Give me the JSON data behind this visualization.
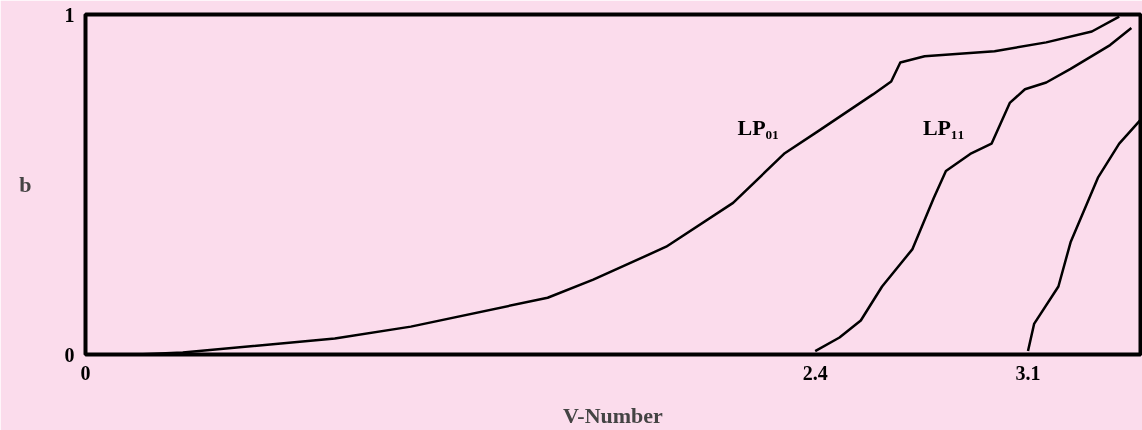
{
  "chart_data": {
    "type": "line",
    "xlabel": "V-Number",
    "ylabel": "b",
    "xlim": [
      0,
      3.47
    ],
    "ylim": [
      0,
      1
    ],
    "xticks": [
      0,
      2.4,
      3.1
    ],
    "yticks": [
      0,
      1
    ],
    "grid": false,
    "legend": false,
    "marker": "none",
    "line_style": "solid",
    "series": [
      {
        "name": "LP₀₁",
        "color": "#000000",
        "x": [
          0.17,
          0.32,
          0.82,
          1.07,
          1.52,
          1.67,
          1.91,
          2.13,
          2.3,
          2.41,
          2.59,
          2.65,
          2.68,
          2.76,
          2.99,
          3.16,
          3.31,
          3.4
        ],
        "values": [
          0,
          0.006,
          0.047,
          0.082,
          0.167,
          0.22,
          0.317,
          0.446,
          0.592,
          0.657,
          0.765,
          0.803,
          0.859,
          0.877,
          0.892,
          0.918,
          0.95,
          0.994
        ]
      },
      {
        "name": "LP₁₁",
        "color": "#000000",
        "x": [
          2.4,
          2.48,
          2.55,
          2.62,
          2.72,
          2.79,
          2.83,
          2.91,
          2.98,
          3.04,
          3.09,
          3.16,
          3.24,
          3.37,
          3.44
        ],
        "values": [
          0.01,
          0.05,
          0.1,
          0.2,
          0.31,
          0.46,
          0.54,
          0.59,
          0.62,
          0.74,
          0.78,
          0.8,
          0.84,
          0.91,
          0.96
        ]
      },
      {
        "color": "#000000",
        "x": [
          3.1,
          3.12,
          3.2,
          3.24,
          3.33,
          3.4,
          3.47
        ],
        "values": [
          0.01,
          0.09,
          0.2,
          0.33,
          0.52,
          0.62,
          0.69
        ]
      }
    ]
  }
}
